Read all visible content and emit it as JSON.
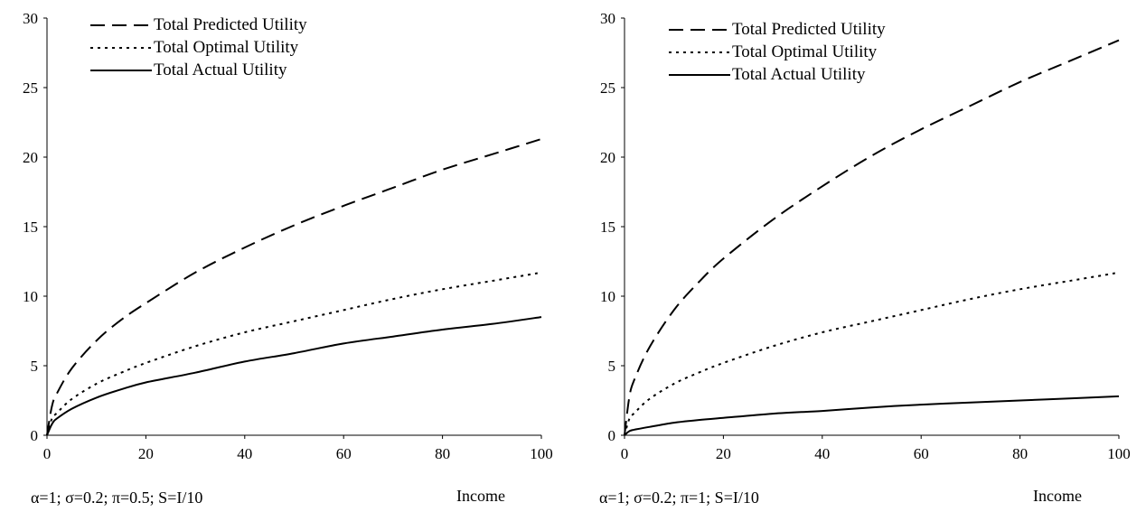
{
  "chart_data": [
    {
      "type": "line",
      "title": "",
      "xlabel": "Income",
      "ylabel": "",
      "params_label": "α=1; σ=0.2; π=0.5; S=I/10",
      "xlim": [
        0,
        100
      ],
      "ylim": [
        0,
        30
      ],
      "xticks": [
        0,
        20,
        40,
        60,
        80,
        100
      ],
      "yticks": [
        0,
        5,
        10,
        15,
        20,
        25,
        30
      ],
      "grid": false,
      "legend_position": "top-left",
      "x": [
        0,
        1,
        2,
        5,
        10,
        15,
        20,
        30,
        40,
        50,
        60,
        70,
        80,
        90,
        100
      ],
      "series": [
        {
          "name": "Total Predicted Utility",
          "style": "dashed",
          "values": [
            0,
            2.1,
            3.0,
            4.8,
            6.8,
            8.3,
            9.5,
            11.7,
            13.5,
            15.1,
            16.5,
            17.8,
            19.1,
            20.2,
            21.3
          ]
        },
        {
          "name": "Total Optimal Utility",
          "style": "dotted",
          "values": [
            0,
            1.2,
            1.6,
            2.6,
            3.7,
            4.5,
            5.2,
            6.4,
            7.4,
            8.2,
            9.0,
            9.8,
            10.5,
            11.1,
            11.7
          ]
        },
        {
          "name": "Total Actual Utility",
          "style": "solid",
          "values": [
            0,
            0.8,
            1.2,
            1.9,
            2.7,
            3.3,
            3.8,
            4.5,
            5.3,
            5.9,
            6.6,
            7.1,
            7.6,
            8.0,
            8.5
          ]
        }
      ]
    },
    {
      "type": "line",
      "title": "",
      "xlabel": "Income",
      "ylabel": "",
      "params_label": "α=1; σ=0.2; π=1; S=I/10",
      "xlim": [
        0,
        100
      ],
      "ylim": [
        0,
        30
      ],
      "xticks": [
        0,
        20,
        40,
        60,
        80,
        100
      ],
      "yticks": [
        0,
        5,
        10,
        15,
        20,
        25,
        30
      ],
      "grid": false,
      "legend_position": "top-left",
      "x": [
        0,
        1,
        2,
        5,
        10,
        15,
        20,
        30,
        40,
        50,
        60,
        70,
        80,
        90,
        100
      ],
      "series": [
        {
          "name": "Total Predicted Utility",
          "style": "dashed",
          "values": [
            0,
            2.8,
            4.0,
            6.3,
            9.0,
            11.0,
            12.7,
            15.5,
            17.9,
            20.1,
            22.0,
            23.7,
            25.4,
            26.9,
            28.4
          ]
        },
        {
          "name": "Total Optimal Utility",
          "style": "dotted",
          "values": [
            0,
            1.2,
            1.6,
            2.6,
            3.7,
            4.5,
            5.2,
            6.4,
            7.4,
            8.2,
            9.0,
            9.8,
            10.5,
            11.1,
            11.7
          ]
        },
        {
          "name": "Total Actual Utility",
          "style": "solid",
          "values": [
            0,
            0.3,
            0.4,
            0.6,
            0.9,
            1.1,
            1.25,
            1.55,
            1.75,
            2.0,
            2.2,
            2.35,
            2.5,
            2.65,
            2.8
          ]
        }
      ]
    }
  ]
}
